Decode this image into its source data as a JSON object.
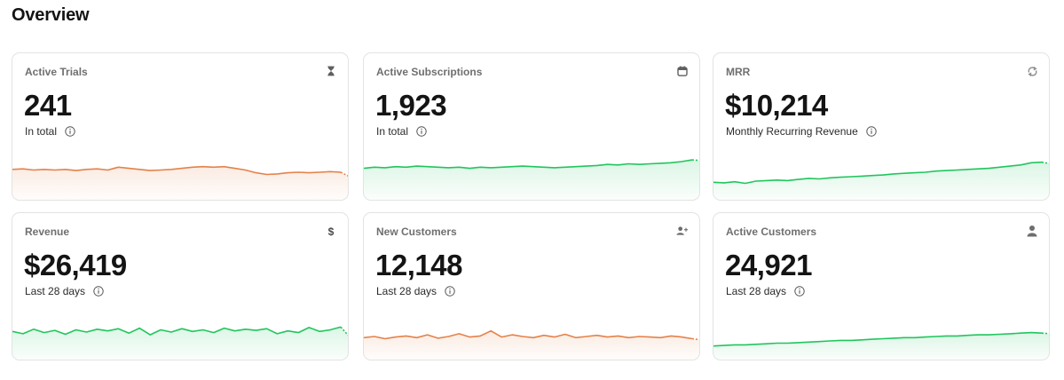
{
  "page": {
    "title": "Overview"
  },
  "colors": {
    "green": "#22c55e",
    "orange": "#e4824a"
  },
  "cards": [
    {
      "label": "Active Trials",
      "value": "241",
      "sub": "In total",
      "icon": "hourglass-icon",
      "color": "orange",
      "trend": [
        48,
        49,
        47,
        48,
        47,
        48,
        46,
        48,
        49,
        47,
        52,
        50,
        48,
        46,
        47,
        48,
        50,
        52,
        53,
        52,
        53,
        50,
        47,
        42,
        39,
        40,
        42,
        43,
        42,
        43,
        44,
        43
      ],
      "trend_tail": 35
    },
    {
      "label": "Active Subscriptions",
      "value": "1,923",
      "sub": "In total",
      "icon": "calendar-icon",
      "color": "green",
      "trend": [
        50,
        52,
        51,
        53,
        52,
        54,
        53,
        52,
        51,
        52,
        50,
        52,
        51,
        52,
        53,
        54,
        53,
        52,
        51,
        52,
        53,
        54,
        55,
        57,
        56,
        58,
        57,
        58,
        59,
        60,
        62,
        65
      ],
      "trend_tail": 64
    },
    {
      "label": "MRR",
      "value": "$10,214",
      "sub": "Monthly Recurring Revenue",
      "icon": "refresh-icon",
      "color": "green",
      "trend": [
        25,
        24,
        26,
        23,
        27,
        28,
        29,
        28,
        30,
        32,
        31,
        33,
        34,
        35,
        36,
        37,
        38,
        40,
        41,
        42,
        43,
        45,
        46,
        47,
        48,
        49,
        50,
        52,
        54,
        56,
        60,
        61
      ],
      "trend_tail": 58
    },
    {
      "label": "Revenue",
      "value": "$26,419",
      "sub": "Last 28 days",
      "icon": "dollar-icon",
      "color": "green",
      "trend": [
        44,
        40,
        48,
        42,
        46,
        39,
        47,
        43,
        48,
        45,
        49,
        41,
        50,
        38,
        47,
        43,
        49,
        44,
        47,
        42,
        50,
        45,
        48,
        46,
        49,
        40,
        45,
        42,
        51,
        44,
        47,
        52
      ],
      "trend_tail": 34
    },
    {
      "label": "New Customers",
      "value": "12,148",
      "sub": "Last 28 days",
      "icon": "user-plus-icon",
      "color": "orange",
      "trend": [
        33,
        35,
        31,
        34,
        36,
        33,
        38,
        32,
        35,
        40,
        34,
        36,
        45,
        34,
        38,
        35,
        33,
        37,
        34,
        39,
        33,
        35,
        37,
        34,
        36,
        33,
        35,
        34,
        33,
        36,
        34,
        31
      ],
      "trend_tail": 29
    },
    {
      "label": "Active Customers",
      "value": "24,921",
      "sub": "Last 28 days",
      "icon": "user-icon",
      "color": "green",
      "trend": [
        18,
        19,
        20,
        20,
        21,
        22,
        23,
        23,
        24,
        25,
        26,
        27,
        28,
        28,
        29,
        30,
        31,
        32,
        33,
        33,
        34,
        35,
        36,
        36,
        37,
        38,
        38,
        39,
        40,
        41,
        42,
        41
      ],
      "trend_tail": 40
    }
  ]
}
